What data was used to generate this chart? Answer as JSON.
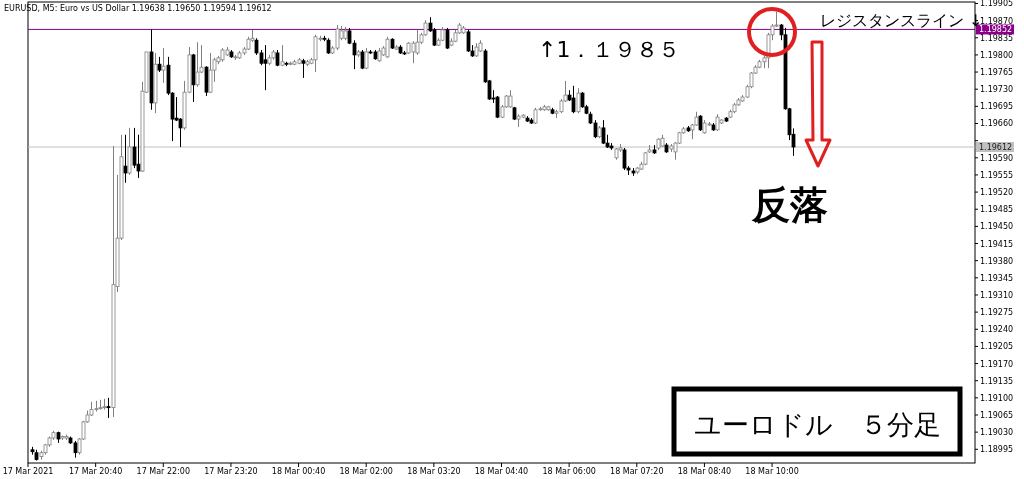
{
  "chart_data": {
    "type": "candlestick",
    "title": "EURUSD, M5:  Euro vs US Dollar  1.19638 1.19650 1.19594 1.19612",
    "annotations": [
      "↑1．１９８５",
      "レジスタンスライン ↓",
      "反落",
      "ユーロドル　５分足"
    ],
    "x": [
      "2021-03-17T19:25",
      "2021-03-17T19:30",
      "2021-03-17T19:35",
      "2021-03-17T19:40",
      "2021-03-17T19:45",
      "2021-03-17T19:50",
      "2021-03-17T19:55",
      "2021-03-17T20:00",
      "2021-03-17T20:05",
      "2021-03-17T20:10",
      "2021-03-17T20:15",
      "2021-03-17T20:20",
      "2021-03-17T20:25",
      "2021-03-17T20:30",
      "2021-03-17T20:35",
      "2021-03-17T20:40",
      "2021-03-17T20:45",
      "2021-03-17T20:50",
      "2021-03-17T20:55",
      "2021-03-17T21:00",
      "2021-03-17T21:05",
      "2021-03-17T21:10",
      "2021-03-17T21:15",
      "2021-03-17T21:20",
      "2021-03-17T21:25",
      "2021-03-17T21:30",
      "2021-03-17T21:35",
      "2021-03-17T21:40",
      "2021-03-17T21:45",
      "2021-03-17T21:50",
      "2021-03-17T21:55",
      "2021-03-17T22:00",
      "2021-03-17T22:05",
      "2021-03-17T22:10",
      "2021-03-17T22:15",
      "2021-03-17T22:20",
      "2021-03-17T22:25",
      "2021-03-17T22:30",
      "2021-03-17T22:35",
      "2021-03-17T22:40",
      "2021-03-17T22:45",
      "2021-03-17T22:50",
      "2021-03-17T22:55",
      "2021-03-17T23:00",
      "2021-03-17T23:05",
      "2021-03-17T23:10",
      "2021-03-17T23:15",
      "2021-03-17T23:20",
      "2021-03-17T23:25",
      "2021-03-17T23:30",
      "2021-03-17T23:35",
      "2021-03-17T23:40",
      "2021-03-17T23:45",
      "2021-03-17T23:50",
      "2021-03-17T23:55",
      "2021-03-18T00:00",
      "2021-03-18T00:05",
      "2021-03-18T00:10",
      "2021-03-18T00:15",
      "2021-03-18T00:20",
      "2021-03-18T00:25",
      "2021-03-18T00:30",
      "2021-03-18T00:35",
      "2021-03-18T00:40",
      "2021-03-18T00:45",
      "2021-03-18T00:50",
      "2021-03-18T00:55",
      "2021-03-18T01:00",
      "2021-03-18T01:05",
      "2021-03-18T01:10",
      "2021-03-18T01:15",
      "2021-03-18T01:20",
      "2021-03-18T01:25",
      "2021-03-18T01:30",
      "2021-03-18T01:35",
      "2021-03-18T01:40",
      "2021-03-18T01:45",
      "2021-03-18T01:50",
      "2021-03-18T01:55",
      "2021-03-18T02:00",
      "2021-03-18T02:05",
      "2021-03-18T02:10",
      "2021-03-18T02:15",
      "2021-03-18T02:20",
      "2021-03-18T02:25",
      "2021-03-18T02:30",
      "2021-03-18T02:35",
      "2021-03-18T02:40",
      "2021-03-18T02:45",
      "2021-03-18T02:50",
      "2021-03-18T02:55",
      "2021-03-18T03:00",
      "2021-03-18T03:05",
      "2021-03-18T03:10",
      "2021-03-18T03:15",
      "2021-03-18T03:20",
      "2021-03-18T03:25",
      "2021-03-18T03:30",
      "2021-03-18T03:35",
      "2021-03-18T03:40",
      "2021-03-18T03:45",
      "2021-03-18T03:50",
      "2021-03-18T03:55",
      "2021-03-18T04:00",
      "2021-03-18T04:05",
      "2021-03-18T04:10",
      "2021-03-18T04:15",
      "2021-03-18T04:20",
      "2021-03-18T04:25",
      "2021-03-18T04:30",
      "2021-03-18T04:35",
      "2021-03-18T04:40",
      "2021-03-18T04:45",
      "2021-03-18T04:50",
      "2021-03-18T04:55",
      "2021-03-18T05:00",
      "2021-03-18T05:05",
      "2021-03-18T05:10",
      "2021-03-18T05:15",
      "2021-03-18T05:20",
      "2021-03-18T05:25",
      "2021-03-18T05:30",
      "2021-03-18T05:35",
      "2021-03-18T05:40",
      "2021-03-18T05:45",
      "2021-03-18T05:50",
      "2021-03-18T05:55",
      "2021-03-18T06:00",
      "2021-03-18T06:05",
      "2021-03-18T06:10",
      "2021-03-18T06:15",
      "2021-03-18T06:20",
      "2021-03-18T06:25",
      "2021-03-18T06:30",
      "2021-03-18T06:35",
      "2021-03-18T06:40",
      "2021-03-18T06:45",
      "2021-03-18T06:50",
      "2021-03-18T06:55",
      "2021-03-18T07:00",
      "2021-03-18T07:05",
      "2021-03-18T07:10",
      "2021-03-18T07:15",
      "2021-03-18T07:20",
      "2021-03-18T07:25",
      "2021-03-18T07:30",
      "2021-03-18T07:35",
      "2021-03-18T07:40",
      "2021-03-18T07:45",
      "2021-03-18T07:50",
      "2021-03-18T07:55",
      "2021-03-18T08:00",
      "2021-03-18T08:05",
      "2021-03-18T08:10",
      "2021-03-18T08:15",
      "2021-03-18T08:20",
      "2021-03-18T08:25",
      "2021-03-18T08:30",
      "2021-03-18T08:35",
      "2021-03-18T08:40",
      "2021-03-18T08:45",
      "2021-03-18T08:50",
      "2021-03-18T08:55",
      "2021-03-18T09:00",
      "2021-03-18T09:05",
      "2021-03-18T09:10",
      "2021-03-18T09:15",
      "2021-03-18T09:20",
      "2021-03-18T09:25",
      "2021-03-18T09:30",
      "2021-03-18T09:35",
      "2021-03-18T09:40",
      "2021-03-18T09:45",
      "2021-03-18T09:50",
      "2021-03-18T09:55",
      "2021-03-18T10:00",
      "2021-03-18T10:05",
      "2021-03-18T10:10",
      "2021-03-18T10:15",
      "2021-03-18T10:20",
      "2021-03-18T10:25"
    ],
    "ohlc": [
      [
        1.18994,
        1.19,
        1.18984,
        1.1899
      ],
      [
        1.18988,
        1.18994,
        1.18972,
        1.18974
      ],
      [
        1.1898,
        1.18992,
        1.18974,
        1.18988
      ],
      [
        1.18988,
        1.19006,
        1.18984,
        1.19004
      ],
      [
        1.19004,
        1.19021,
        1.19,
        1.19018
      ],
      [
        1.19018,
        1.19033,
        1.19014,
        1.19029
      ],
      [
        1.19029,
        1.19031,
        1.19008,
        1.19016
      ],
      [
        1.19018,
        1.19023,
        1.19014,
        1.19021
      ],
      [
        1.19018,
        1.19025,
        1.19014,
        1.19021
      ],
      [
        1.19018,
        1.19021,
        1.19006,
        1.19008
      ],
      [
        1.19008,
        1.19012,
        1.18978,
        1.18988
      ],
      [
        1.18988,
        1.19018,
        1.18984,
        1.19016
      ],
      [
        1.19016,
        1.19053,
        1.19014,
        1.19051
      ],
      [
        1.19051,
        1.19074,
        1.19049,
        1.19065
      ],
      [
        1.19065,
        1.19092,
        1.19063,
        1.19076
      ],
      [
        1.19076,
        1.19094,
        1.19072,
        1.19078
      ],
      [
        1.19078,
        1.19096,
        1.19076,
        1.1908
      ],
      [
        1.1908,
        1.19098,
        1.19076,
        1.19082
      ],
      [
        1.19082,
        1.191,
        1.19059,
        1.1908
      ],
      [
        1.1908,
        1.19614,
        1.19061,
        1.19331
      ],
      [
        1.19327,
        1.19555,
        1.19316,
        1.19426
      ],
      [
        1.19426,
        1.19637,
        1.19422,
        1.19592
      ],
      [
        1.19573,
        1.19637,
        1.19539,
        1.19559
      ],
      [
        1.19559,
        1.19651,
        1.19555,
        1.19612
      ],
      [
        1.19612,
        1.19651,
        1.19569,
        1.19575
      ],
      [
        1.19577,
        1.19637,
        1.19549,
        1.19563
      ],
      [
        1.19563,
        1.19745,
        1.19561,
        1.19726
      ],
      [
        1.19724,
        1.19806,
        1.19722,
        1.19806
      ],
      [
        1.19806,
        1.19852,
        1.19688,
        1.19702
      ],
      [
        1.19702,
        1.19804,
        1.19681,
        1.19781
      ],
      [
        1.19781,
        1.19796,
        1.19765,
        1.19769
      ],
      [
        1.19769,
        1.19814,
        1.19743,
        1.19777
      ],
      [
        1.19779,
        1.19796,
        1.19718,
        1.19722
      ],
      [
        1.19722,
        1.19724,
        1.19624,
        1.19669
      ],
      [
        1.19671,
        1.19714,
        1.19665,
        1.19667
      ],
      [
        1.19669,
        1.19671,
        1.19612,
        1.19651
      ],
      [
        1.19651,
        1.19747,
        1.19647,
        1.19724
      ],
      [
        1.19724,
        1.19816,
        1.19722,
        1.198
      ],
      [
        1.198,
        1.19802,
        1.19704,
        1.19739
      ],
      [
        1.19739,
        1.19826,
        1.19735,
        1.19765
      ],
      [
        1.19765,
        1.1982,
        1.19763,
        1.19775
      ],
      [
        1.19775,
        1.19777,
        1.19716,
        1.19724
      ],
      [
        1.19724,
        1.19804,
        1.19722,
        1.19769
      ],
      [
        1.19769,
        1.19794,
        1.19745,
        1.1979
      ],
      [
        1.19786,
        1.19798,
        1.19781,
        1.19794
      ],
      [
        1.1979,
        1.19814,
        1.19786,
        1.1981
      ],
      [
        1.198,
        1.19816,
        1.19798,
        1.1981
      ],
      [
        1.19806,
        1.1981,
        1.19794,
        1.19796
      ],
      [
        1.19794,
        1.198,
        1.1979,
        1.19796
      ],
      [
        1.19794,
        1.19808,
        1.19792,
        1.19804
      ],
      [
        1.19804,
        1.19816,
        1.198,
        1.19812
      ],
      [
        1.19812,
        1.19837,
        1.1981,
        1.19832
      ],
      [
        1.1983,
        1.19851,
        1.19826,
        1.19834
      ],
      [
        1.1983,
        1.19834,
        1.198,
        1.19804
      ],
      [
        1.19804,
        1.1981,
        1.19779,
        1.19783
      ],
      [
        1.1979,
        1.1982,
        1.19728,
        1.19783
      ],
      [
        1.19783,
        1.198,
        1.19779,
        1.19794
      ],
      [
        1.19794,
        1.1981,
        1.1979,
        1.19806
      ],
      [
        1.19804,
        1.1981,
        1.19777,
        1.19779
      ],
      [
        1.19779,
        1.1982,
        1.19777,
        1.19786
      ],
      [
        1.19783,
        1.19786,
        1.19777,
        1.19781
      ],
      [
        1.19781,
        1.19786,
        1.19779,
        1.19783
      ],
      [
        1.19781,
        1.1979,
        1.19779,
        1.19786
      ],
      [
        1.19783,
        1.19794,
        1.19781,
        1.1979
      ],
      [
        1.19788,
        1.19792,
        1.19753,
        1.19783
      ],
      [
        1.19781,
        1.1979,
        1.19777,
        1.19786
      ],
      [
        1.19783,
        1.19794,
        1.19781,
        1.1979
      ],
      [
        1.1979,
        1.19841,
        1.19765,
        1.19837
      ],
      [
        1.19832,
        1.19839,
        1.19828,
        1.19834
      ],
      [
        1.19834,
        1.19839,
        1.19828,
        1.19832
      ],
      [
        1.1983,
        1.19834,
        1.19802,
        1.19804
      ],
      [
        1.19804,
        1.19818,
        1.19802,
        1.19814
      ],
      [
        1.19814,
        1.19861,
        1.1981,
        1.19853
      ],
      [
        1.19834,
        1.19859,
        1.1983,
        1.19849
      ],
      [
        1.19834,
        1.19857,
        1.1983,
        1.19849
      ],
      [
        1.19849,
        1.19855,
        1.19822,
        1.19824
      ],
      [
        1.19824,
        1.1983,
        1.19771,
        1.198
      ],
      [
        1.198,
        1.1981,
        1.19796,
        1.19806
      ],
      [
        1.19806,
        1.1981,
        1.19771,
        1.19773
      ],
      [
        1.19773,
        1.19814,
        1.19771,
        1.19806
      ],
      [
        1.19806,
        1.1981,
        1.19802,
        1.19804
      ],
      [
        1.19806,
        1.1981,
        1.1979,
        1.19792
      ],
      [
        1.19788,
        1.19814,
        1.19786,
        1.19808
      ],
      [
        1.198,
        1.19818,
        1.19798,
        1.19814
      ],
      [
        1.19796,
        1.19837,
        1.19794,
        1.19832
      ],
      [
        1.19832,
        1.19834,
        1.19812,
        1.19814
      ],
      [
        1.19812,
        1.1982,
        1.1981,
        1.19816
      ],
      [
        1.19816,
        1.1982,
        1.19802,
        1.19804
      ],
      [
        1.19804,
        1.19808,
        1.198,
        1.19802
      ],
      [
        1.19804,
        1.19826,
        1.19802,
        1.19824
      ],
      [
        1.19806,
        1.19828,
        1.19783,
        1.19824
      ],
      [
        1.19804,
        1.19851,
        1.198,
        1.19826
      ],
      [
        1.19826,
        1.19845,
        1.19822,
        1.19841
      ],
      [
        1.19841,
        1.19871,
        1.19839,
        1.19865
      ],
      [
        1.19865,
        1.19877,
        1.19847,
        1.19849
      ],
      [
        1.19851,
        1.19855,
        1.19818,
        1.1982
      ],
      [
        1.1982,
        1.19834,
        1.19818,
        1.1983
      ],
      [
        1.1983,
        1.19857,
        1.19828,
        1.19851
      ],
      [
        1.19851,
        1.19855,
        1.19812,
        1.19814
      ],
      [
        1.1982,
        1.19834,
        1.19818,
        1.19828
      ],
      [
        1.19828,
        1.19851,
        1.19826,
        1.19845
      ],
      [
        1.19845,
        1.19865,
        1.19843,
        1.19861
      ],
      [
        1.19845,
        1.19859,
        1.19843,
        1.19855
      ],
      [
        1.19847,
        1.19851,
        1.19806,
        1.19808
      ],
      [
        1.19808,
        1.1982,
        1.19796,
        1.19798
      ],
      [
        1.19798,
        1.19824,
        1.19796,
        1.19816
      ],
      [
        1.19808,
        1.1983,
        1.19806,
        1.19824
      ],
      [
        1.19808,
        1.19812,
        1.19743,
        1.19745
      ],
      [
        1.19747,
        1.19749,
        1.19708,
        1.1971
      ],
      [
        1.19712,
        1.19728,
        1.19702,
        1.1971
      ],
      [
        1.19714,
        1.19716,
        1.19671,
        1.19673
      ],
      [
        1.19673,
        1.19698,
        1.19671,
        1.19694
      ],
      [
        1.19694,
        1.19718,
        1.19692,
        1.19716
      ],
      [
        1.19694,
        1.19728,
        1.19692,
        1.19716
      ],
      [
        1.19692,
        1.19694,
        1.19667,
        1.19669
      ],
      [
        1.19669,
        1.19679,
        1.19653,
        1.19675
      ],
      [
        1.19673,
        1.19679,
        1.19671,
        1.19677
      ],
      [
        1.19671,
        1.19675,
        1.19663,
        1.19665
      ],
      [
        1.19667,
        1.19671,
        1.19659,
        1.19661
      ],
      [
        1.19661,
        1.19692,
        1.19659,
        1.19688
      ],
      [
        1.19688,
        1.19694,
        1.19686,
        1.1969
      ],
      [
        1.19688,
        1.19698,
        1.19686,
        1.19694
      ],
      [
        1.19688,
        1.19696,
        1.19686,
        1.19694
      ],
      [
        1.19688,
        1.19692,
        1.19679,
        1.19681
      ],
      [
        1.19681,
        1.19688,
        1.19671,
        1.19684
      ],
      [
        1.19684,
        1.1971,
        1.19681,
        1.19706
      ],
      [
        1.19706,
        1.19747,
        1.19704,
        1.19718
      ],
      [
        1.19718,
        1.19728,
        1.19706,
        1.19708
      ],
      [
        1.19712,
        1.19737,
        1.19681,
        1.19684
      ],
      [
        1.19684,
        1.19732,
        1.19681,
        1.19722
      ],
      [
        1.19722,
        1.19724,
        1.19692,
        1.19694
      ],
      [
        1.19694,
        1.19698,
        1.19679,
        1.19681
      ],
      [
        1.19679,
        1.19684,
        1.19659,
        1.19661
      ],
      [
        1.19661,
        1.19667,
        1.1963,
        1.19633
      ],
      [
        1.19633,
        1.19655,
        1.1963,
        1.19651
      ],
      [
        1.19651,
        1.19667,
        1.19618,
        1.1962
      ],
      [
        1.1962,
        1.19637,
        1.1961,
        1.19612
      ],
      [
        1.19614,
        1.1962,
        1.19606,
        1.1961
      ],
      [
        1.1959,
        1.1961,
        1.19586,
        1.19608
      ],
      [
        1.19606,
        1.19618,
        1.19602,
        1.1961
      ],
      [
        1.19606,
        1.1961,
        1.19565,
        1.19569
      ],
      [
        1.19569,
        1.19573,
        1.19555,
        1.19565
      ],
      [
        1.19563,
        1.19569,
        1.19553,
        1.19559
      ],
      [
        1.19561,
        1.19571,
        1.19557,
        1.19569
      ],
      [
        1.19567,
        1.19582,
        1.19565,
        1.19577
      ],
      [
        1.19577,
        1.19602,
        1.19575,
        1.196
      ],
      [
        1.19602,
        1.19616,
        1.196,
        1.19606
      ],
      [
        1.19606,
        1.19616,
        1.19598,
        1.196
      ],
      [
        1.1961,
        1.1963,
        1.19606,
        1.19628
      ],
      [
        1.19614,
        1.19637,
        1.19612,
        1.1963
      ],
      [
        1.19616,
        1.1962,
        1.196,
        1.19602
      ],
      [
        1.19608,
        1.19618,
        1.19602,
        1.19614
      ],
      [
        1.19602,
        1.19622,
        1.19586,
        1.1962
      ],
      [
        1.1962,
        1.19643,
        1.19618,
        1.19641
      ],
      [
        1.19641,
        1.19653,
        1.19639,
        1.19649
      ],
      [
        1.19651,
        1.19655,
        1.19643,
        1.19645
      ],
      [
        1.19647,
        1.19659,
        1.19628,
        1.19657
      ],
      [
        1.19657,
        1.19684,
        1.19655,
        1.19673
      ],
      [
        1.19675,
        1.19677,
        1.19645,
        1.19647
      ],
      [
        1.19641,
        1.19667,
        1.19639,
        1.19661
      ],
      [
        1.19657,
        1.19663,
        1.19655,
        1.19659
      ],
      [
        1.19657,
        1.19661,
        1.19645,
        1.19647
      ],
      [
        1.19647,
        1.19679,
        1.19645,
        1.19673
      ],
      [
        1.19661,
        1.19669,
        1.19659,
        1.19667
      ],
      [
        1.19671,
        1.19673,
        1.19663,
        1.19665
      ],
      [
        1.19673,
        1.19688,
        1.19671,
        1.19684
      ],
      [
        1.19684,
        1.19702,
        1.19681,
        1.19698
      ],
      [
        1.19698,
        1.19712,
        1.19696,
        1.19708
      ],
      [
        1.19706,
        1.19718,
        1.19704,
        1.19714
      ],
      [
        1.19714,
        1.19739,
        1.19712,
        1.19735
      ],
      [
        1.19735,
        1.19765,
        1.19732,
        1.19763
      ],
      [
        1.19763,
        1.19779,
        1.19761,
        1.19775
      ],
      [
        1.19775,
        1.1979,
        1.19773,
        1.19786
      ],
      [
        1.19786,
        1.19798,
        1.19773,
        1.19794
      ],
      [
        1.19794,
        1.19845,
        1.19773,
        1.19841
      ],
      [
        1.19841,
        1.19863,
        1.1983,
        1.19859
      ],
      [
        1.19859,
        1.19888,
        1.19857,
        1.19861
      ],
      [
        1.19861,
        1.19863,
        1.1983,
        1.19841
      ],
      [
        1.19841,
        1.19855,
        1.19688,
        1.1969
      ],
      [
        1.1969,
        1.19692,
        1.19626,
        1.19637
      ],
      [
        1.19638,
        1.1965,
        1.19594,
        1.19612
      ]
    ],
    "xlim": [
      "2021-03-17T19:20",
      "2021-03-18T14:00"
    ],
    "xticks": [
      {
        "value": "2021-03-17T19:20",
        "label": "17 Mar 2021"
      },
      {
        "value": "2021-03-17T20:40",
        "label": "17 Mar 20:40"
      },
      {
        "value": "2021-03-17T22:00",
        "label": "17 Mar 22:00"
      },
      {
        "value": "2021-03-17T23:20",
        "label": "17 Mar 23:20"
      },
      {
        "value": "2021-03-18T00:40",
        "label": "18 Mar 00:40"
      },
      {
        "value": "2021-03-18T02:00",
        "label": "18 Mar 02:00"
      },
      {
        "value": "2021-03-18T03:20",
        "label": "18 Mar 03:20"
      },
      {
        "value": "2021-03-18T04:40",
        "label": "18 Mar 04:40"
      },
      {
        "value": "2021-03-18T06:00",
        "label": "18 Mar 06:00"
      },
      {
        "value": "2021-03-18T07:20",
        "label": "18 Mar 07:20"
      },
      {
        "value": "2021-03-18T08:40",
        "label": "18 Mar 08:40"
      },
      {
        "value": "2021-03-18T10:00",
        "label": "18 Mar 10:00"
      }
    ],
    "ylim": [
      1.18967,
      1.19908
    ],
    "yticks": [
      {
        "value": 1.18995,
        "label": "1.18995"
      },
      {
        "value": 1.1903,
        "label": "1.19030"
      },
      {
        "value": 1.19065,
        "label": "1.19065"
      },
      {
        "value": 1.191,
        "label": "1.19100"
      },
      {
        "value": 1.19135,
        "label": "1.19135"
      },
      {
        "value": 1.1917,
        "label": "1.19170"
      },
      {
        "value": 1.19205,
        "label": "1.19205"
      },
      {
        "value": 1.1924,
        "label": "1.19240"
      },
      {
        "value": 1.19275,
        "label": "1.19275"
      },
      {
        "value": 1.1931,
        "label": "1.19310"
      },
      {
        "value": 1.19345,
        "label": "1.19345"
      },
      {
        "value": 1.1938,
        "label": "1.19380"
      },
      {
        "value": 1.19415,
        "label": "1.19415"
      },
      {
        "value": 1.1945,
        "label": "1.19450"
      },
      {
        "value": 1.19485,
        "label": "1.19485"
      },
      {
        "value": 1.1952,
        "label": "1.19520"
      },
      {
        "value": 1.19555,
        "label": "1.19555"
      },
      {
        "value": 1.1959,
        "label": "1.19590"
      },
      {
        "value": 1.19625,
        "label": null
      },
      {
        "value": 1.1966,
        "label": "1.19660"
      },
      {
        "value": 1.19695,
        "label": "1.19695"
      },
      {
        "value": 1.1973,
        "label": "1.19730"
      },
      {
        "value": 1.19765,
        "label": "1.19765"
      },
      {
        "value": 1.198,
        "label": "1.19800"
      },
      {
        "value": 1.19835,
        "label": "1.19835"
      },
      {
        "value": 1.1987,
        "label": "1.19870"
      },
      {
        "value": 1.19905,
        "label": "1.19905"
      }
    ],
    "ref_lines": [
      {
        "axis": "y",
        "value": 1.19852,
        "label": "1.19852",
        "color": "#8b008b"
      },
      {
        "axis": "y",
        "value": 1.19612,
        "label": "1.19612",
        "color": "#c0c0c0"
      }
    ],
    "grid": false
  }
}
